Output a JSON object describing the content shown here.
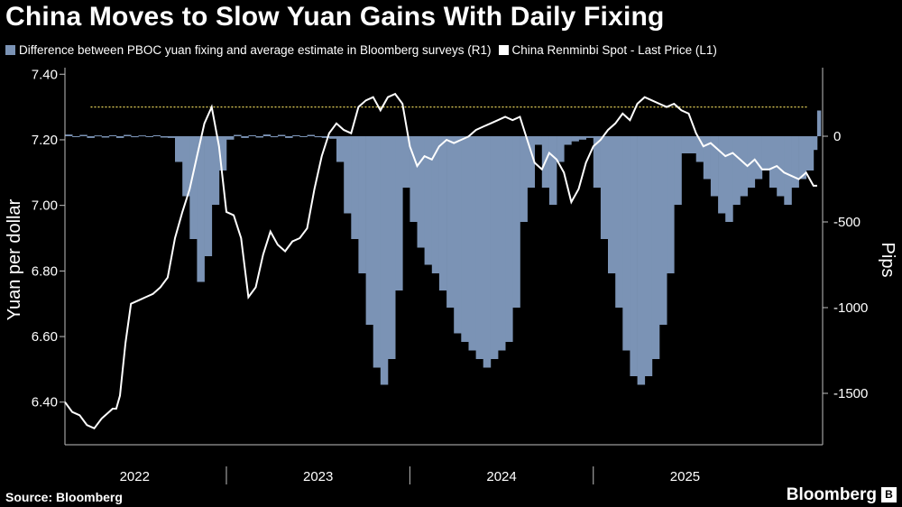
{
  "header": {
    "title": "China Moves to Slow Yuan Gains With Daily Fixing"
  },
  "legend": [
    {
      "label": "Difference between PBOC yuan fixing and average estimate in Bloomberg surveys (R1)",
      "color": "#7b93b5"
    },
    {
      "label": "China Renminbi Spot - Last Price (L1)",
      "color": "#ffffff"
    }
  ],
  "footer": {
    "source": "Source: Bloomberg",
    "brand": "Bloomberg",
    "brand_mark": "B"
  },
  "chart_data": {
    "type": "line",
    "left_axis": {
      "label": "Yuan per dollar",
      "ticks": [
        "6.40",
        "6.60",
        "6.80",
        "7.00",
        "7.20",
        "7.40"
      ],
      "range": [
        6.27,
        7.42
      ]
    },
    "right_axis": {
      "label": "Pips",
      "ticks": [
        "0",
        "-500",
        "-1000",
        "-1500"
      ],
      "range": [
        -1800,
        400
      ]
    },
    "x_axis": {
      "labels": [
        "2022",
        "2023",
        "2024",
        "2025"
      ],
      "range": [
        2021.62,
        2025.75
      ]
    },
    "reference_line": {
      "axis": "left",
      "value": 7.3
    },
    "series": [
      {
        "name": "China Renminbi Spot - Last Price (L1)",
        "axis": "left",
        "color": "#ffffff",
        "x": [
          2021.62,
          2021.66,
          2021.7,
          2021.74,
          2021.78,
          2021.82,
          2021.86,
          2021.88,
          2021.9,
          2021.92,
          2021.95,
          2021.98,
          2022.02,
          2022.06,
          2022.1,
          2022.14,
          2022.18,
          2022.22,
          2022.26,
          2022.3,
          2022.34,
          2022.38,
          2022.42,
          2022.46,
          2022.5,
          2022.54,
          2022.58,
          2022.62,
          2022.66,
          2022.7,
          2022.74,
          2022.78,
          2022.82,
          2022.86,
          2022.9,
          2022.94,
          2022.98,
          2023.02,
          2023.06,
          2023.1,
          2023.14,
          2023.18,
          2023.22,
          2023.26,
          2023.3,
          2023.34,
          2023.38,
          2023.42,
          2023.46,
          2023.5,
          2023.54,
          2023.58,
          2023.62,
          2023.66,
          2023.7,
          2023.74,
          2023.78,
          2023.82,
          2023.86,
          2023.9,
          2023.94,
          2023.98,
          2024.02,
          2024.06,
          2024.1,
          2024.14,
          2024.18,
          2024.22,
          2024.26,
          2024.3,
          2024.34,
          2024.38,
          2024.42,
          2024.46,
          2024.5,
          2024.54,
          2024.58,
          2024.62,
          2024.66,
          2024.7,
          2024.74,
          2024.78,
          2024.82,
          2024.86,
          2024.9,
          2024.94,
          2024.98,
          2025.02,
          2025.06,
          2025.1,
          2025.14,
          2025.18,
          2025.22,
          2025.26,
          2025.3,
          2025.34,
          2025.38,
          2025.42,
          2025.46,
          2025.5,
          2025.54,
          2025.58,
          2025.62,
          2025.66,
          2025.7,
          2025.72
        ],
        "values": [
          6.4,
          6.37,
          6.36,
          6.33,
          6.32,
          6.35,
          6.37,
          6.38,
          6.38,
          6.42,
          6.58,
          6.7,
          6.71,
          6.72,
          6.73,
          6.75,
          6.78,
          6.9,
          6.98,
          7.05,
          7.15,
          7.25,
          7.3,
          7.18,
          6.98,
          6.97,
          6.9,
          6.72,
          6.75,
          6.85,
          6.92,
          6.88,
          6.86,
          6.89,
          6.9,
          6.93,
          7.05,
          7.15,
          7.22,
          7.25,
          7.23,
          7.22,
          7.3,
          7.32,
          7.33,
          7.29,
          7.33,
          7.34,
          7.31,
          7.18,
          7.12,
          7.15,
          7.14,
          7.18,
          7.2,
          7.19,
          7.2,
          7.21,
          7.23,
          7.24,
          7.25,
          7.26,
          7.27,
          7.26,
          7.27,
          7.2,
          7.13,
          7.11,
          7.16,
          7.14,
          7.1,
          7.01,
          7.05,
          7.13,
          7.18,
          7.2,
          7.23,
          7.25,
          7.28,
          7.26,
          7.31,
          7.33,
          7.32,
          7.31,
          7.3,
          7.31,
          7.29,
          7.28,
          7.22,
          7.18,
          7.19,
          7.17,
          7.15,
          7.16,
          7.14,
          7.12,
          7.14,
          7.11,
          7.11,
          7.12,
          7.1,
          7.09,
          7.08,
          7.1,
          7.06,
          7.06
        ]
      },
      {
        "name": "Difference between PBOC yuan fixing and average estimate in Bloomberg surveys (R1)",
        "axis": "right",
        "type": "bar",
        "color": "#7b93b5",
        "x": [
          2021.62,
          2021.66,
          2021.7,
          2021.74,
          2021.78,
          2021.82,
          2021.86,
          2021.9,
          2021.94,
          2021.98,
          2022.02,
          2022.06,
          2022.1,
          2022.14,
          2022.18,
          2022.22,
          2022.26,
          2022.3,
          2022.34,
          2022.38,
          2022.42,
          2022.46,
          2022.5,
          2022.54,
          2022.58,
          2022.62,
          2022.66,
          2022.7,
          2022.74,
          2022.78,
          2022.82,
          2022.86,
          2022.9,
          2022.94,
          2022.98,
          2023.02,
          2023.06,
          2023.1,
          2023.14,
          2023.18,
          2023.22,
          2023.26,
          2023.3,
          2023.34,
          2023.38,
          2023.42,
          2023.46,
          2023.5,
          2023.54,
          2023.58,
          2023.62,
          2023.66,
          2023.7,
          2023.74,
          2023.78,
          2023.82,
          2023.86,
          2023.9,
          2023.94,
          2023.98,
          2024.02,
          2024.06,
          2024.1,
          2024.14,
          2024.18,
          2024.22,
          2024.26,
          2024.3,
          2024.34,
          2024.38,
          2024.42,
          2024.46,
          2024.5,
          2024.54,
          2024.58,
          2024.62,
          2024.66,
          2024.7,
          2024.74,
          2024.78,
          2024.82,
          2024.86,
          2024.9,
          2024.94,
          2024.98,
          2025.02,
          2025.06,
          2025.1,
          2025.14,
          2025.18,
          2025.22,
          2025.26,
          2025.3,
          2025.34,
          2025.38,
          2025.42,
          2025.46,
          2025.5,
          2025.54,
          2025.58,
          2025.62,
          2025.66,
          2025.7,
          2025.72
        ],
        "values": [
          10,
          -5,
          8,
          -10,
          5,
          -8,
          6,
          -10,
          8,
          -6,
          5,
          -5,
          6,
          -8,
          -10,
          -150,
          -350,
          -600,
          -850,
          -700,
          -400,
          -200,
          -20,
          8,
          -10,
          6,
          -8,
          10,
          -6,
          8,
          -10,
          6,
          -5,
          8,
          -6,
          -10,
          -15,
          -150,
          -450,
          -600,
          -800,
          -1100,
          -1350,
          -1450,
          -1300,
          -900,
          -300,
          -500,
          -650,
          -750,
          -800,
          -900,
          -1000,
          -1150,
          -1200,
          -1250,
          -1300,
          -1350,
          -1300,
          -1250,
          -1200,
          -1000,
          -500,
          -300,
          -50,
          -300,
          -400,
          -150,
          -50,
          -30,
          -20,
          -10,
          -300,
          -600,
          -800,
          -1000,
          -1250,
          -1400,
          -1450,
          -1400,
          -1300,
          -1100,
          -800,
          -400,
          -100,
          -100,
          -150,
          -250,
          -350,
          -450,
          -500,
          -400,
          -350,
          -300,
          -250,
          -200,
          -300,
          -350,
          -400,
          -300,
          -250,
          -200,
          -80,
          150
        ]
      }
    ]
  }
}
